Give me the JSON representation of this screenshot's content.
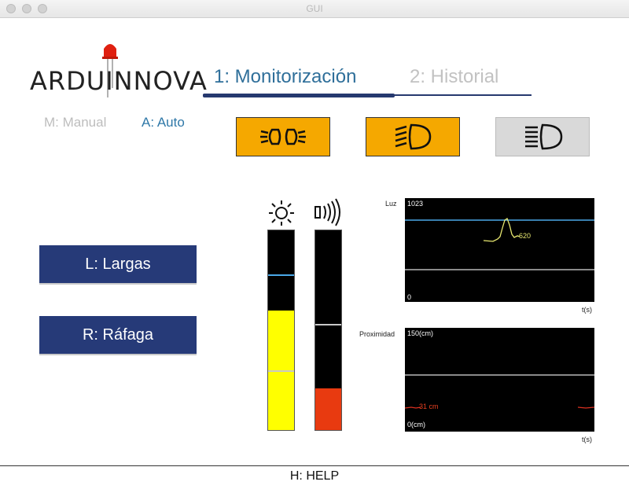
{
  "window": {
    "title": "GUI"
  },
  "logo": {
    "text": "ARDUINNOVA"
  },
  "tabs": [
    {
      "label": "1: Monitorización",
      "active": true
    },
    {
      "label": "2: Historial",
      "active": false
    }
  ],
  "modes": {
    "manual": "M: Manual",
    "auto": "A: Auto",
    "selected": "auto"
  },
  "lights": [
    {
      "icon": "position-lights-icon",
      "active": true,
      "color": "#f5a800"
    },
    {
      "icon": "low-beam-icon",
      "active": true,
      "color": "#f5a800"
    },
    {
      "icon": "high-beam-icon",
      "active": false,
      "color": "#d9d9d9"
    }
  ],
  "buttons": {
    "largas": "L: Largas",
    "rafaga": "R: Ráfaga"
  },
  "bars": {
    "light_level": 0.6,
    "light_threshold_upper": 0.78,
    "light_threshold_lower": 0.3,
    "proximity_level": 0.21,
    "proximity_threshold": 0.53
  },
  "charts": {
    "luz": {
      "label": "Luz",
      "ymax": "1023",
      "ymin": "0",
      "value_label": "620",
      "xlabel": "t(s)"
    },
    "proximidad": {
      "label": "Proximidad",
      "ymax": "150(cm)",
      "ymin": "0(cm)",
      "value_label": "31 cm",
      "xlabel": "t(s)"
    }
  },
  "footer": {
    "help": "H: HELP"
  },
  "colors": {
    "accent": "#263a78",
    "tab_active": "#2f6f9a",
    "amber": "#f5a800",
    "light_bar": "#ffff00",
    "prox_bar": "#e83a10"
  }
}
